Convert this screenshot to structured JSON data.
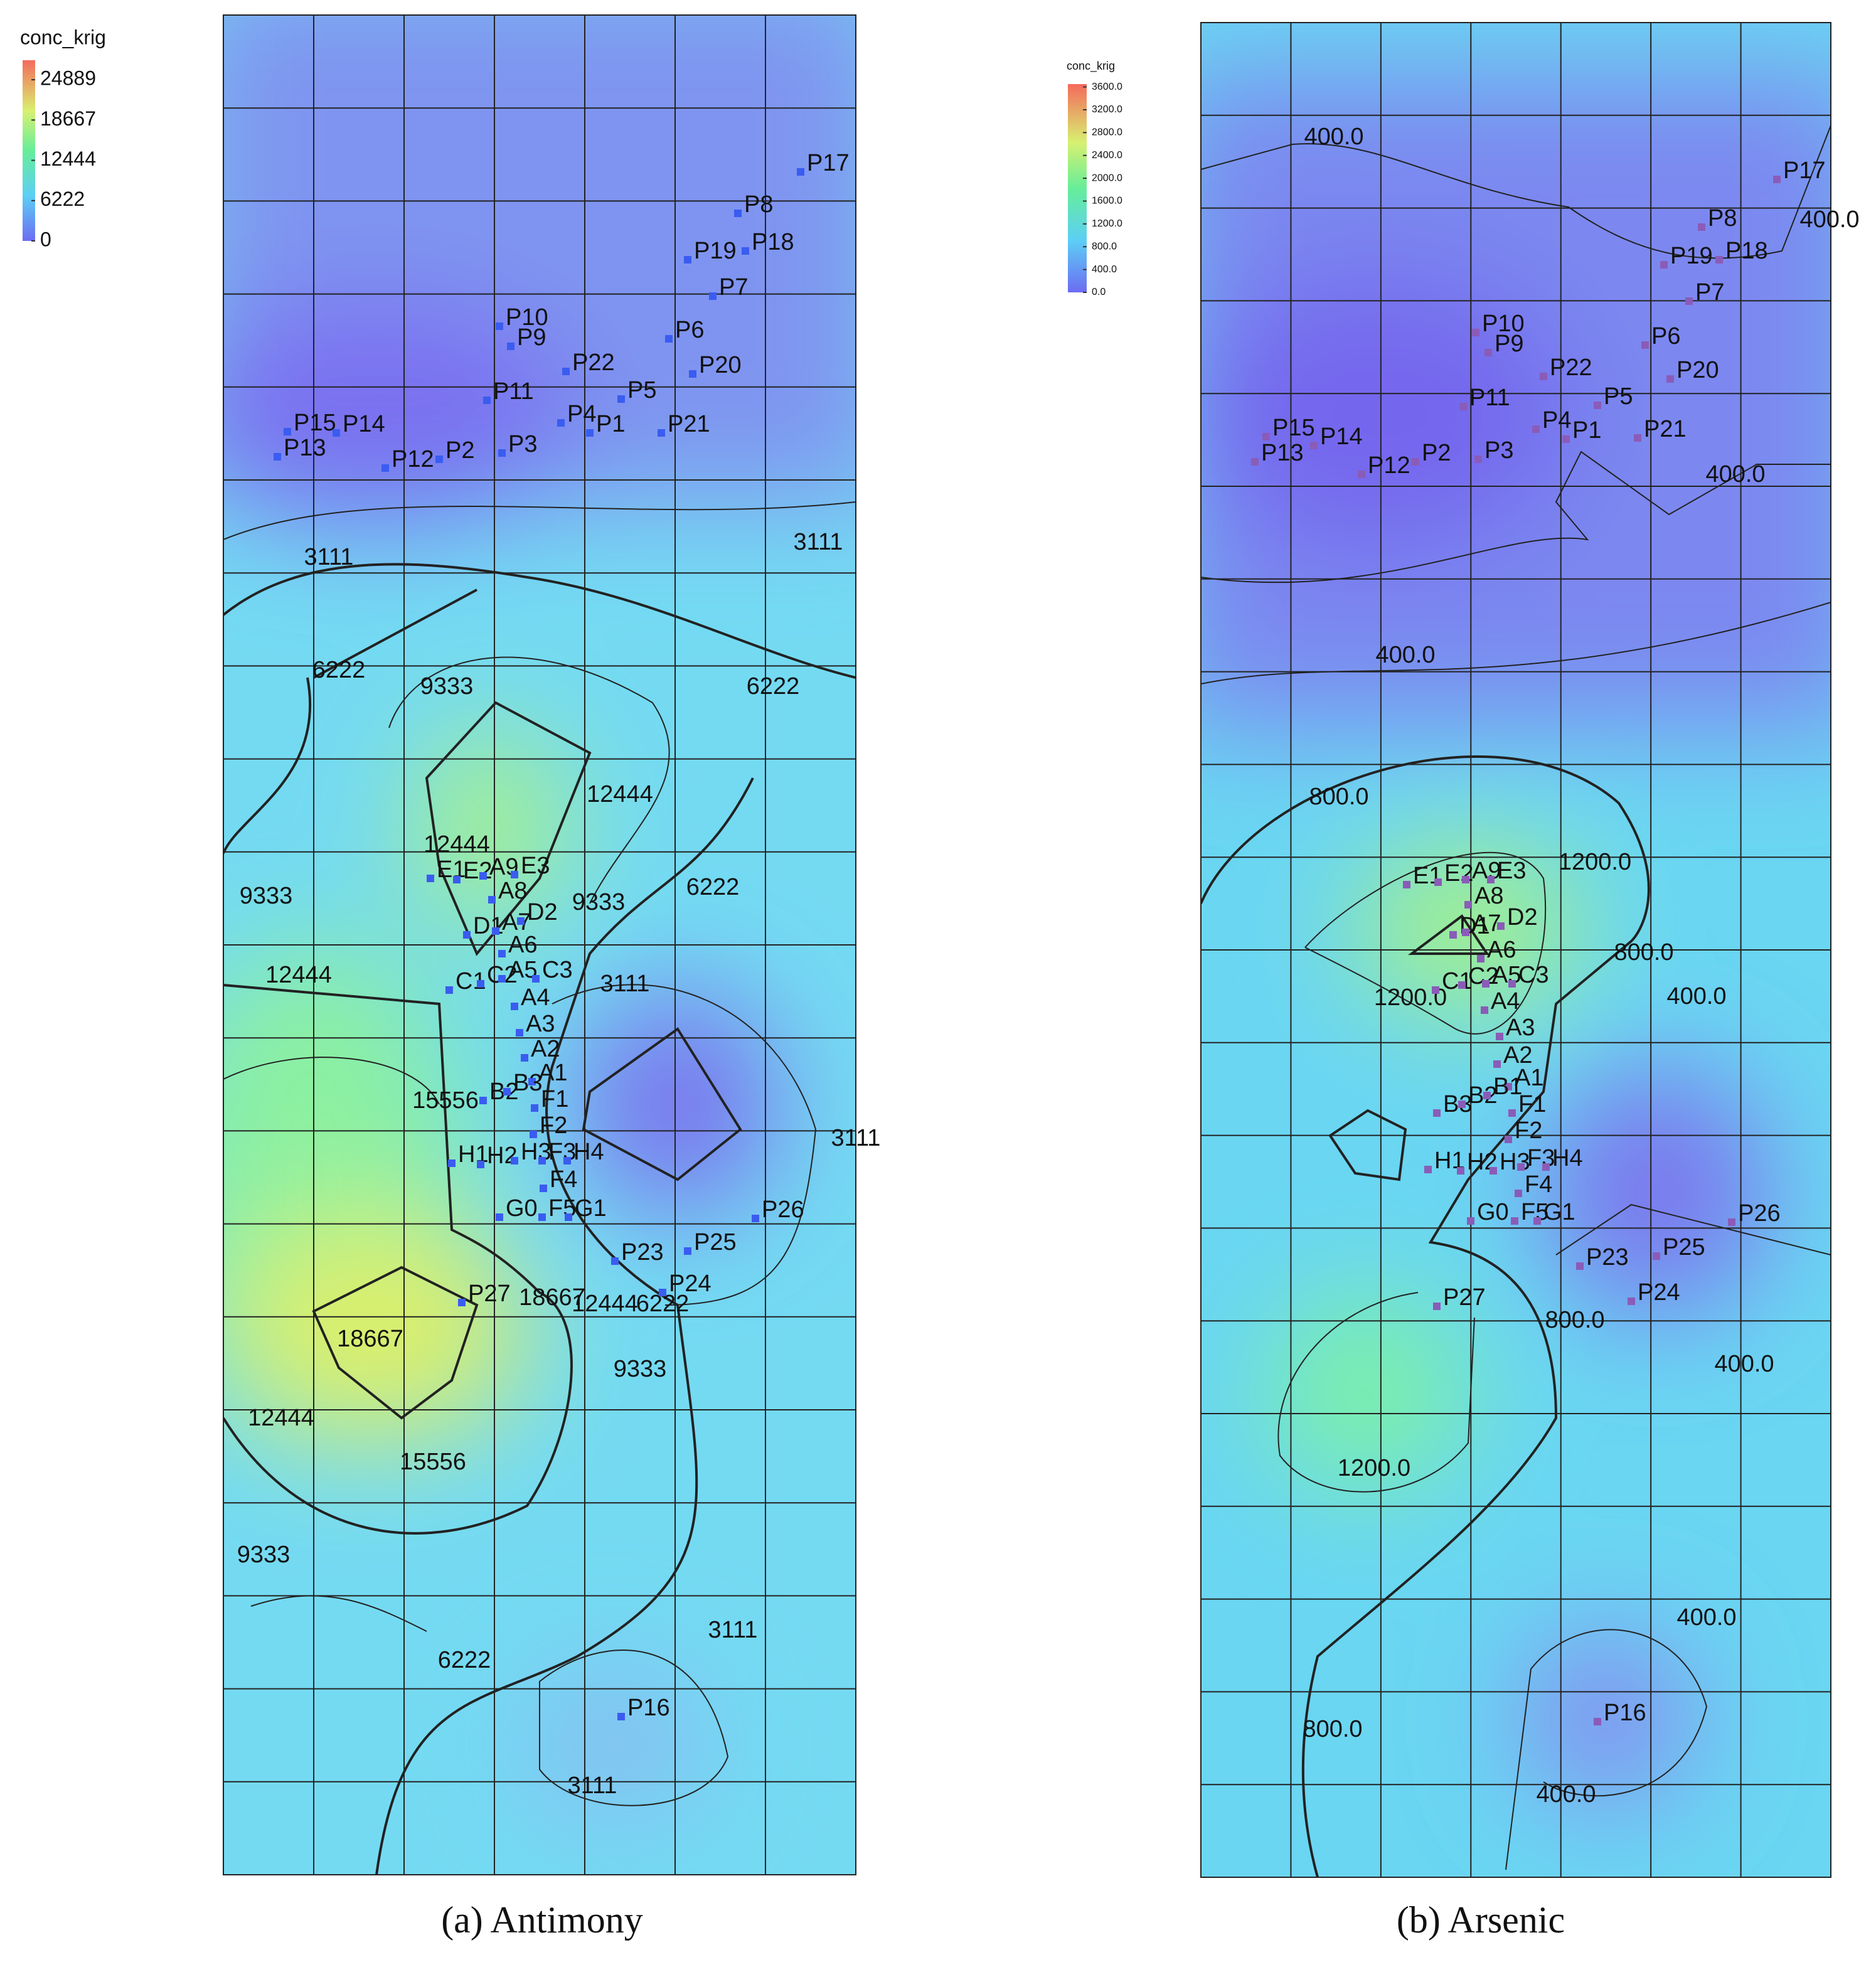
{
  "panels": [
    {
      "caption": "(a) Antimony",
      "colorbar": {
        "title": "conc_krig",
        "lim": [
          0,
          27900
        ],
        "ticks": [
          0,
          6222,
          12444,
          18667,
          24889
        ]
      },
      "contour_labels": [
        "3111",
        "3111",
        "6222",
        "9333",
        "6222",
        "12444",
        "12444",
        "9333",
        "9333",
        "6222",
        "12444",
        "3111",
        "15556",
        "3111",
        "18667",
        "12444",
        "6222",
        "18667",
        "9333",
        "12444",
        "15556",
        "9333",
        "3111",
        "6222",
        "3111"
      ],
      "points": [
        "P17",
        "P8",
        "P19",
        "P18",
        "P7",
        "P10",
        "P9",
        "P22",
        "P6",
        "P20",
        "P11",
        "P5",
        "P15",
        "P14",
        "P13",
        "P12",
        "P2",
        "P3",
        "P4",
        "P1",
        "P21",
        "E1",
        "E2",
        "A9",
        "E3",
        "A8",
        "D1",
        "A7",
        "D2",
        "A6",
        "C1",
        "C2",
        "A5",
        "C3",
        "A4",
        "A3",
        "A2",
        "A1",
        "B2",
        "B3",
        "F1",
        "F2",
        "H1",
        "H2",
        "H3",
        "F3",
        "H4",
        "F4",
        "G0",
        "F5",
        "G1",
        "P26",
        "P25",
        "P23",
        "P24",
        "P27",
        "P16"
      ]
    },
    {
      "caption": "(b) Arsenic",
      "colorbar": {
        "title": "conc_krig",
        "lim": [
          0,
          3650
        ],
        "ticks": [
          {
            "value": 0,
            "label": "0.0"
          },
          {
            "value": 400,
            "label": "400.0"
          },
          {
            "value": 800,
            "label": "800.0"
          },
          {
            "value": 1200,
            "label": "1200.0"
          },
          {
            "value": 1600,
            "label": "1600.0"
          },
          {
            "value": 2000,
            "label": "2000.0"
          },
          {
            "value": 2400,
            "label": "2400.0"
          },
          {
            "value": 2800,
            "label": "2800.0"
          },
          {
            "value": 3200,
            "label": "3200.0"
          },
          {
            "value": 3600,
            "label": "3600.0"
          }
        ]
      },
      "contour_labels": [
        "400.0",
        "400.0",
        "400.0",
        "400.0",
        "800.0",
        "1200.0",
        "800.0",
        "400.0",
        "1200.0",
        "800.0",
        "400.0",
        "1200.0",
        "400.0",
        "800.0",
        "400.0"
      ],
      "points": [
        "P17",
        "P8",
        "P19",
        "P18",
        "P7",
        "P10",
        "P9",
        "P22",
        "P6",
        "P20",
        "P11",
        "P5",
        "P15",
        "P14",
        "P13",
        "P12",
        "P2",
        "P3",
        "P4",
        "P1",
        "P21",
        "E1",
        "E2",
        "A9",
        "E3",
        "A8",
        "D1",
        "A7",
        "D2",
        "A6",
        "C1",
        "C2",
        "A5",
        "C3",
        "A4",
        "A3",
        "A2",
        "A1",
        "B3",
        "B2",
        "B1",
        "F1",
        "F2",
        "H1",
        "H2",
        "H3",
        "F3",
        "H4",
        "F4",
        "G0",
        "F5",
        "G1",
        "P26",
        "P25",
        "P23",
        "P24",
        "P27",
        "P16"
      ]
    }
  ]
}
